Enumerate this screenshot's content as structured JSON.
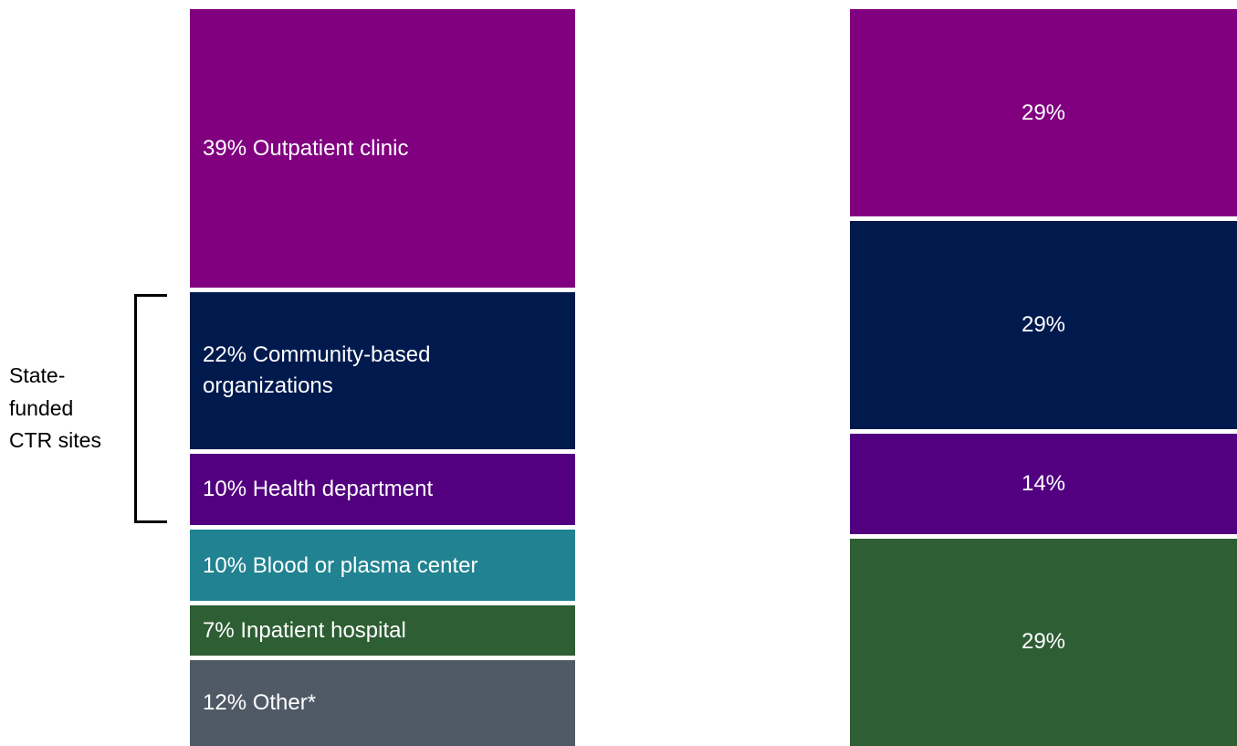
{
  "chart_data": [
    {
      "type": "stacked_bar",
      "values": [
        39,
        22,
        10,
        10,
        7,
        12
      ],
      "value_labels": [
        "39% Outpatient clinic",
        "22% Community-based organizations",
        "10% Health department",
        "10% Blood or plasma center",
        "7% Inpatient hospital",
        "12% Other*"
      ],
      "colors": [
        "#800080",
        "#001a4e",
        "#520080",
        "#218291",
        "#2e5e34",
        "#4f5a66"
      ],
      "label_align": "left",
      "annotation": "State-\nfunded\nCTR sites"
    },
    {
      "type": "stacked_bar",
      "values": [
        29,
        29,
        14,
        29
      ],
      "value_labels": [
        "29%",
        "29%",
        "14%",
        "29%"
      ],
      "colors": [
        "#800080",
        "#001a4e",
        "#520080",
        "#2e5e34"
      ],
      "label_align": "center"
    }
  ]
}
